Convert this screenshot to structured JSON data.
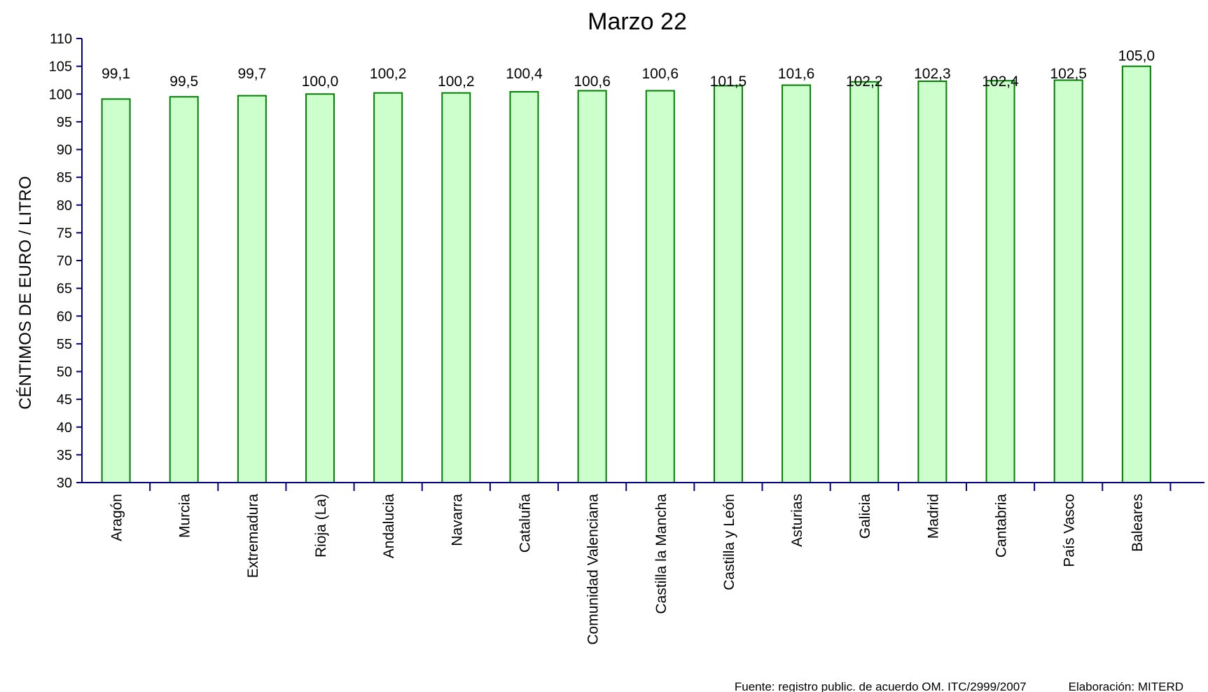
{
  "chart_data": {
    "type": "bar",
    "title": "Marzo 22",
    "xlabel": "",
    "ylabel": "CÉNTIMOS DE EURO / LITRO",
    "ylim": [
      30,
      110
    ],
    "ytick_step": 5,
    "yticks": [
      "30",
      "35",
      "40",
      "45",
      "50",
      "55",
      "60",
      "65",
      "70",
      "75",
      "80",
      "85",
      "90",
      "95",
      "100",
      "105",
      "110"
    ],
    "categories": [
      "Aragón",
      "Murcia",
      "Extremadura",
      "Rioja (La)",
      "Andalucia",
      "Navarra",
      "Cataluña",
      "Comunidad Valenciana",
      "Castilla la Mancha",
      "Castilla y León",
      "Asturias",
      "Galicia",
      "Madrid",
      "Cantabria",
      "País Vasco",
      "Baleares"
    ],
    "values": [
      99.1,
      99.5,
      99.7,
      100.0,
      100.2,
      100.2,
      100.4,
      100.6,
      100.6,
      101.5,
      101.6,
      102.2,
      102.3,
      102.4,
      102.5,
      105.0
    ],
    "data_labels": [
      "99,1",
      "99,5",
      "99,7",
      "100,0",
      "100,2",
      "100,2",
      "100,4",
      "100,6",
      "100,6",
      "101,5",
      "101,6",
      "102,2",
      "102,3",
      "102,4",
      "102,5",
      "105,0"
    ],
    "grid": false,
    "legend": "none",
    "colors": {
      "bar_fill": "#ccffcc",
      "bar_stroke": "#008000",
      "axis": "#000080"
    }
  },
  "footer": {
    "source": "Fuente: registro public. de acuerdo OM. ITC/2999/2007",
    "credit": "Elaboración: MITERD"
  }
}
